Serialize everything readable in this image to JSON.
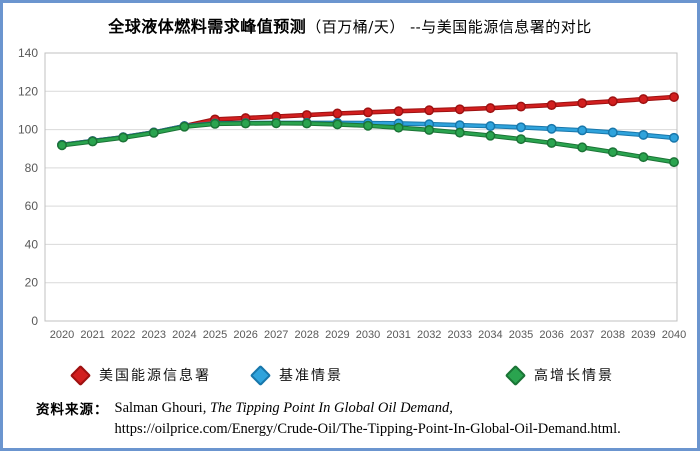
{
  "title": {
    "bold": "全球液体燃料需求峰值预测",
    "rest": "（百万桶/天）  --与美国能源信息署的对比"
  },
  "chart_data": {
    "type": "line",
    "x": [
      2020,
      2021,
      2022,
      2023,
      2024,
      2025,
      2026,
      2027,
      2028,
      2029,
      2030,
      2031,
      2032,
      2033,
      2034,
      2035,
      2036,
      2037,
      2038,
      2039,
      2040
    ],
    "series": [
      {
        "name": "美国能源信息署",
        "color": "#d21f1f",
        "dark": "#9e1111",
        "values": [
          92,
          94,
          96,
          98.5,
          101.8,
          105.3,
          106,
          106.8,
          107.6,
          108.4,
          109,
          109.6,
          110.1,
          110.6,
          111.2,
          112,
          112.8,
          113.8,
          114.8,
          115.9,
          117
        ]
      },
      {
        "name": "基准情景",
        "color": "#2fa3dc",
        "dark": "#1877ab",
        "values": [
          92,
          94,
          96,
          98.5,
          101.8,
          103.2,
          103.4,
          103.5,
          103.5,
          103.5,
          103.4,
          103.2,
          102.8,
          102.3,
          101.8,
          101.2,
          100.4,
          99.6,
          98.5,
          97.2,
          95.7
        ]
      },
      {
        "name": "高增长情景",
        "color": "#2aa44f",
        "dark": "#1b7436",
        "values": [
          91.8,
          93.8,
          95.8,
          98.3,
          101.5,
          103,
          103.2,
          103.3,
          103.2,
          102.7,
          102,
          101,
          99.8,
          98.4,
          96.8,
          95,
          93,
          90.7,
          88.2,
          85.6,
          83
        ]
      }
    ],
    "title": "全球液体燃料需求峰值预测（百万桶/天） --与美国能源信息署的对比",
    "xlabel": "",
    "ylabel": "",
    "ylim": [
      0,
      140
    ],
    "yticks": [
      0,
      20,
      40,
      60,
      80,
      100,
      120,
      140
    ],
    "grid": "horizontal",
    "legend_position": "bottom",
    "colors": {
      "grid": "#d9d9d9",
      "plot_border": "#c0c0c0",
      "tick_label": "#595959",
      "page_border": "#6b95cf"
    }
  },
  "source": {
    "label": "资料来源：",
    "line1_normal": "Salman Ghouri, ",
    "line1_italic": "The Tipping Point In Global Oil Demand,",
    "line2": "https://oilprice.com/Energy/Crude-Oil/The-Tipping-Point-In-Global-Oil-Demand.html."
  }
}
